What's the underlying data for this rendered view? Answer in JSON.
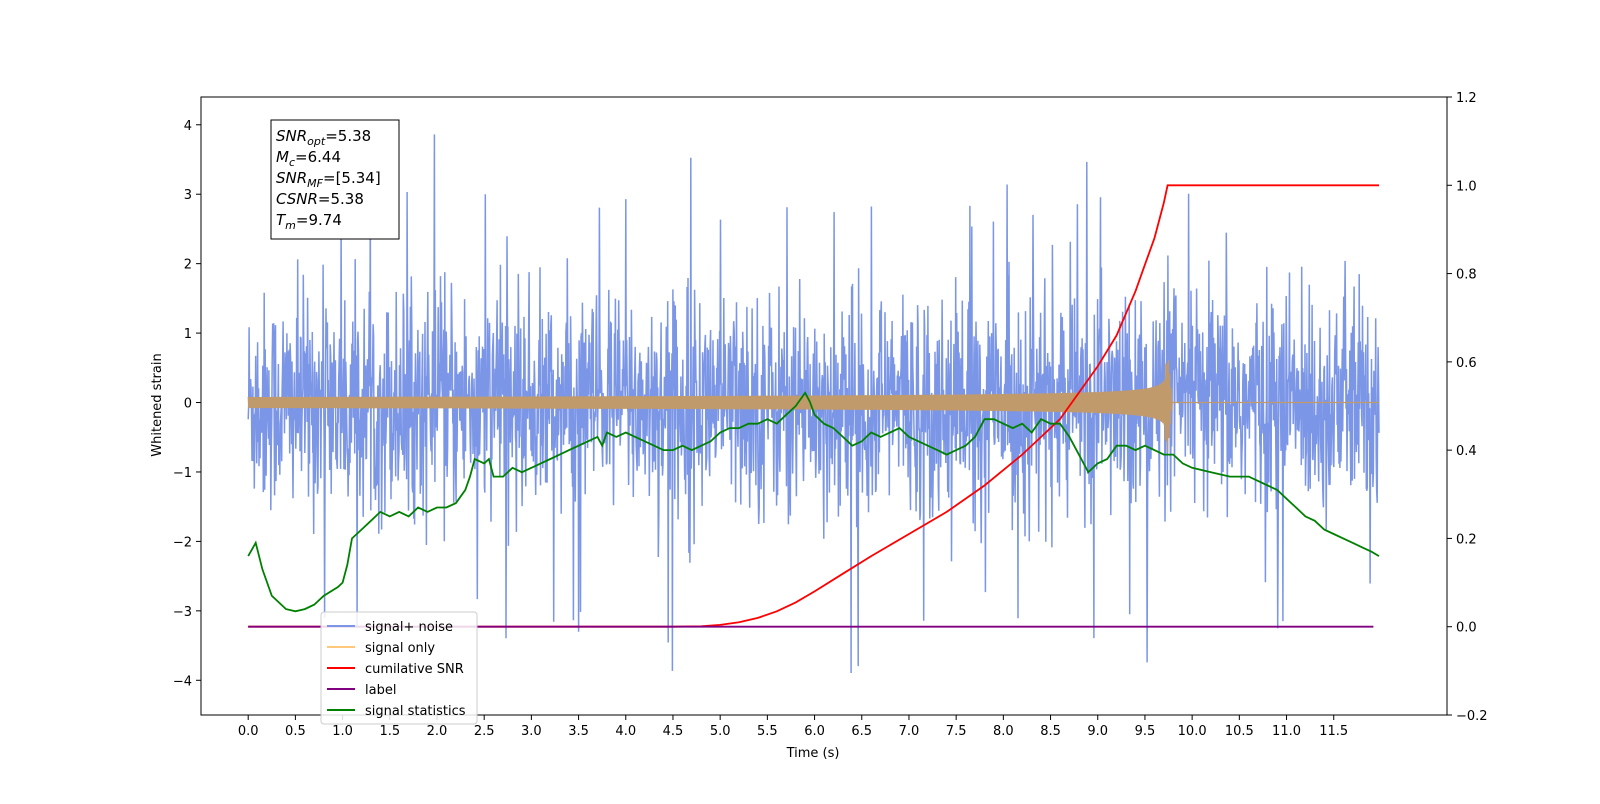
{
  "chart_data": {
    "type": "line",
    "xlabel": "Time (s)",
    "ylabel": "Whitened strain",
    "xlim": [
      -0.5,
      12.7
    ],
    "ylim": [
      -4.5,
      4.4
    ],
    "y2lim": [
      -0.2,
      1.2
    ],
    "x_ticks": [
      0.0,
      0.5,
      1.0,
      1.5,
      2.0,
      2.5,
      3.0,
      3.5,
      4.0,
      4.5,
      5.0,
      5.5,
      6.0,
      6.5,
      7.0,
      7.5,
      8.0,
      8.5,
      9.0,
      9.5,
      10.0,
      10.5,
      11.0,
      11.5
    ],
    "x_tick_labels": [
      "0.0",
      "0.5",
      "1.0",
      "1.5",
      "2.0",
      "2.5",
      "3.0",
      "3.5",
      "4.0",
      "4.5",
      "5.0",
      "5.5",
      "6.0",
      "6.5",
      "7.0",
      "7.5",
      "8.0",
      "8.5",
      "9.0",
      "9.5",
      "10.0",
      "10.5",
      "11.0",
      "11.5"
    ],
    "y_ticks": [
      -4,
      -3,
      -2,
      -1,
      0,
      1,
      2,
      3,
      4
    ],
    "y_tick_labels": [
      "−4",
      "−3",
      "−2",
      "−1",
      "0",
      "1",
      "2",
      "3",
      "4"
    ],
    "y2_ticks": [
      -0.2,
      0.0,
      0.2,
      0.4,
      0.6,
      0.8,
      1.0,
      1.2
    ],
    "y2_tick_labels": [
      "−0.2",
      "0.0",
      "0.2",
      "0.4",
      "0.6",
      "0.8",
      "1.0",
      "1.2"
    ],
    "grid": false,
    "legend_position": "lower-left",
    "info_box": [
      {
        "base": "SNR",
        "sub": "opt",
        "rest": "=5.38"
      },
      {
        "base": "M",
        "sub": "c",
        "rest": "=6.44"
      },
      {
        "base": "SNR",
        "sub": "MF",
        "rest": "=[5.34]"
      },
      {
        "base": "CSNR",
        "sub": "",
        "rest": "=5.38"
      },
      {
        "base": "T",
        "sub": "m",
        "rest": "=9.74"
      }
    ],
    "series": [
      {
        "name": "signal+ noise",
        "axis": "left",
        "color": "#7b96e6",
        "kind": "noise",
        "x_range": [
          0.0,
          11.98
        ],
        "sigma": 0.78,
        "max": 3.95,
        "min": -3.9
      },
      {
        "name": "signal only",
        "axis": "left",
        "color": "#c19a6b",
        "legend_color": "#ffc87a",
        "kind": "chirp",
        "x_range": [
          0.0,
          11.98
        ],
        "merger_time": 9.74,
        "peak_amplitude": 0.75
      },
      {
        "name": "cumilative SNR",
        "axis": "right",
        "color": "#ff0000",
        "x": [
          0.0,
          4.5,
          4.8,
          5.0,
          5.2,
          5.4,
          5.6,
          5.8,
          6.0,
          6.3,
          6.6,
          7.0,
          7.4,
          7.8,
          8.2,
          8.6,
          9.0,
          9.2,
          9.4,
          9.5,
          9.6,
          9.7,
          9.74,
          11.98
        ],
        "y": [
          0.0,
          0.0,
          0.001,
          0.004,
          0.01,
          0.02,
          0.035,
          0.055,
          0.08,
          0.12,
          0.16,
          0.21,
          0.26,
          0.32,
          0.39,
          0.47,
          0.59,
          0.66,
          0.76,
          0.82,
          0.88,
          0.96,
          1.0,
          1.0
        ]
      },
      {
        "name": "label",
        "axis": "right",
        "color": "#800080",
        "x": [
          0.0,
          11.92
        ],
        "y": [
          0.0,
          0.0
        ]
      },
      {
        "name": "signal statistics",
        "axis": "right",
        "color": "#008000",
        "x": [
          0.0,
          0.08,
          0.15,
          0.25,
          0.4,
          0.5,
          0.6,
          0.7,
          0.8,
          0.95,
          1.0,
          1.05,
          1.1,
          1.2,
          1.3,
          1.4,
          1.5,
          1.6,
          1.7,
          1.8,
          1.9,
          2.0,
          2.1,
          2.2,
          2.3,
          2.35,
          2.4,
          2.5,
          2.55,
          2.6,
          2.7,
          2.8,
          2.9,
          3.0,
          3.1,
          3.2,
          3.3,
          3.4,
          3.5,
          3.6,
          3.7,
          3.75,
          3.8,
          3.9,
          4.0,
          4.1,
          4.2,
          4.3,
          4.4,
          4.5,
          4.6,
          4.7,
          4.8,
          4.9,
          5.0,
          5.1,
          5.2,
          5.3,
          5.4,
          5.5,
          5.6,
          5.7,
          5.8,
          5.9,
          5.95,
          6.0,
          6.1,
          6.2,
          6.3,
          6.4,
          6.5,
          6.6,
          6.7,
          6.8,
          6.9,
          7.0,
          7.1,
          7.2,
          7.3,
          7.4,
          7.5,
          7.6,
          7.7,
          7.8,
          7.9,
          8.0,
          8.1,
          8.2,
          8.3,
          8.4,
          8.5,
          8.6,
          8.7,
          8.8,
          8.9,
          9.0,
          9.1,
          9.2,
          9.3,
          9.4,
          9.5,
          9.6,
          9.7,
          9.8,
          9.9,
          10.0,
          10.2,
          10.4,
          10.6,
          10.8,
          10.9,
          11.0,
          11.1,
          11.2,
          11.3,
          11.4,
          11.5,
          11.6,
          11.7,
          11.8,
          11.9,
          11.98
        ],
        "y": [
          0.16,
          0.19,
          0.13,
          0.07,
          0.04,
          0.035,
          0.04,
          0.05,
          0.07,
          0.09,
          0.1,
          0.14,
          0.2,
          0.22,
          0.24,
          0.26,
          0.25,
          0.26,
          0.25,
          0.27,
          0.26,
          0.27,
          0.27,
          0.28,
          0.31,
          0.34,
          0.38,
          0.37,
          0.38,
          0.34,
          0.34,
          0.36,
          0.35,
          0.36,
          0.37,
          0.38,
          0.39,
          0.4,
          0.41,
          0.42,
          0.43,
          0.41,
          0.44,
          0.43,
          0.44,
          0.43,
          0.42,
          0.41,
          0.4,
          0.4,
          0.41,
          0.4,
          0.41,
          0.42,
          0.44,
          0.45,
          0.45,
          0.46,
          0.46,
          0.47,
          0.46,
          0.48,
          0.5,
          0.53,
          0.51,
          0.48,
          0.46,
          0.45,
          0.43,
          0.41,
          0.42,
          0.44,
          0.43,
          0.44,
          0.45,
          0.43,
          0.42,
          0.41,
          0.4,
          0.39,
          0.4,
          0.41,
          0.43,
          0.47,
          0.47,
          0.46,
          0.45,
          0.46,
          0.44,
          0.47,
          0.46,
          0.46,
          0.43,
          0.39,
          0.35,
          0.37,
          0.38,
          0.41,
          0.41,
          0.4,
          0.41,
          0.4,
          0.39,
          0.39,
          0.37,
          0.36,
          0.35,
          0.34,
          0.34,
          0.32,
          0.31,
          0.29,
          0.27,
          0.25,
          0.24,
          0.22,
          0.21,
          0.2,
          0.19,
          0.18,
          0.17,
          0.16
        ]
      }
    ]
  }
}
